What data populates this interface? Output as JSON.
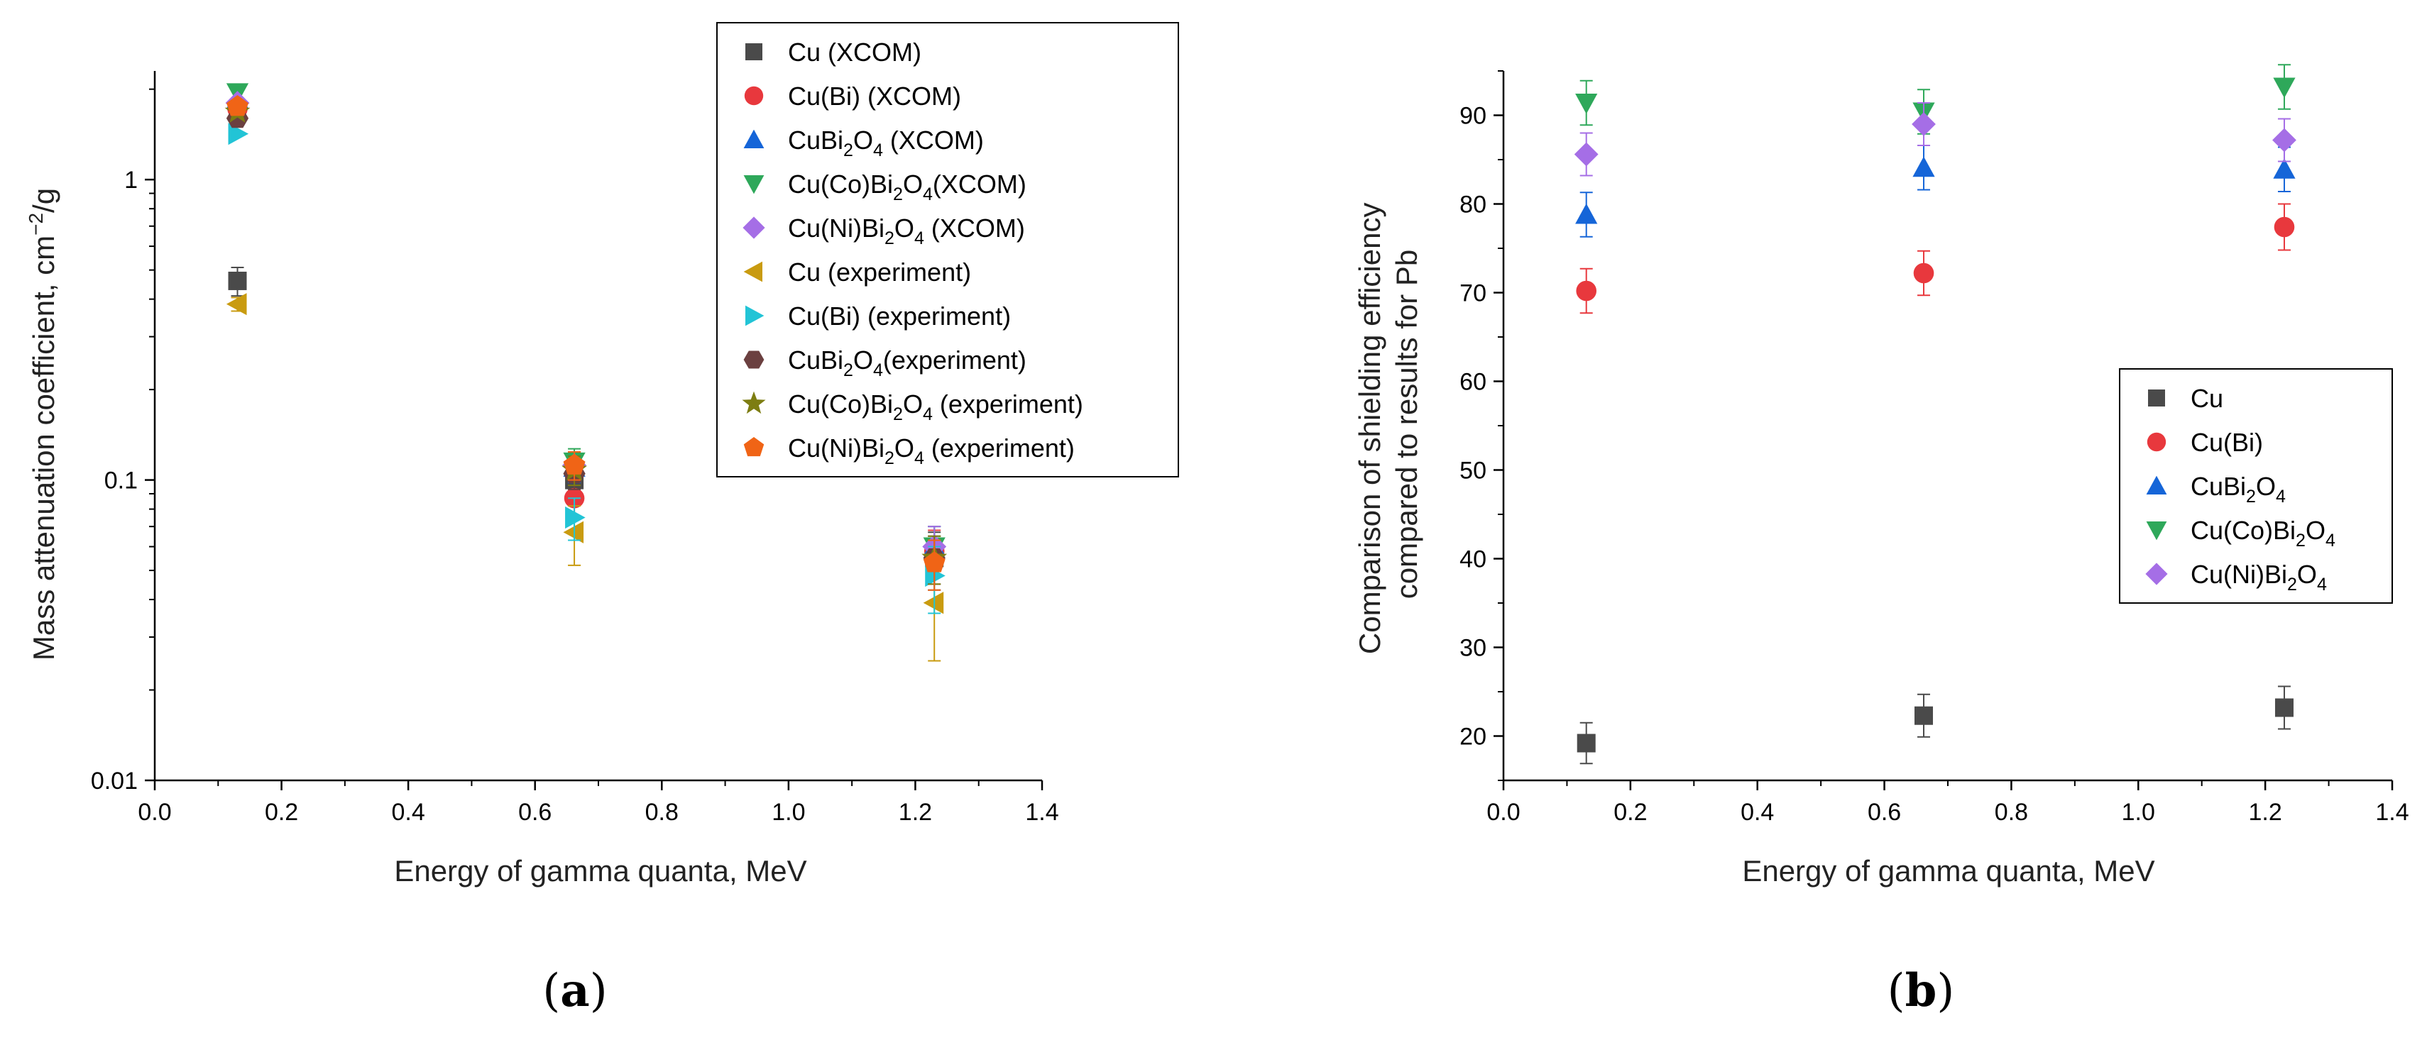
{
  "chart_data": [
    {
      "type": "scatter",
      "panel_label": "a",
      "xlabel": "Energy of gamma quanta, MeV",
      "ylabel": "Mass attenuation coefficient, cm",
      "ylabel_sup": "−2",
      "ylabel_tail": "/g",
      "xscale": "linear",
      "yscale": "log",
      "xlim": [
        0.0,
        1.4
      ],
      "ylim": [
        0.01,
        2.3
      ],
      "xticks": [
        "0.0",
        "0.2",
        "0.4",
        "0.6",
        "0.8",
        "1.0",
        "1.2",
        "1.4"
      ],
      "xtick_values": [
        0.0,
        0.2,
        0.4,
        0.6,
        0.8,
        1.0,
        1.2,
        1.4
      ],
      "yticks": [
        "0.01",
        "0.1",
        "1"
      ],
      "ytick_values": [
        0.01,
        0.1,
        1
      ],
      "grid": false,
      "legend_position": "top-right",
      "series": [
        {
          "name": "Cu (XCOM)",
          "label": [
            [
              "Cu (XCOM)",
              ""
            ]
          ],
          "marker": "square",
          "color": "#4a4a4a",
          "x": [
            0.1305,
            0.662,
            1.23
          ],
          "y": [
            0.46,
            0.1,
            0.055
          ],
          "err": [
            0.05,
            0.015,
            0.012
          ]
        },
        {
          "name": "Cu(Bi) (XCOM)",
          "label": [
            [
              "Cu(Bi) (XCOM)",
              ""
            ]
          ],
          "marker": "circle",
          "color": "#e8383d",
          "x": [
            0.1305,
            0.662,
            1.23
          ],
          "y": [
            1.72,
            0.087,
            0.058
          ],
          "err": [
            0.0,
            0.012,
            0.01
          ]
        },
        {
          "name": "CuBi2O4 (XCOM)",
          "label": [
            [
              "CuBi",
              ""
            ],
            [
              "2",
              "sub"
            ],
            [
              "O",
              ""
            ],
            [
              "4",
              "sub"
            ],
            [
              " (XCOM)",
              ""
            ]
          ],
          "marker": "triangle-up",
          "color": "#1565d8",
          "x": [
            0.1305,
            0.662,
            1.23
          ],
          "y": [
            1.85,
            0.11,
            0.06
          ],
          "err": [
            0.0,
            0.012,
            0.01
          ]
        },
        {
          "name": "Cu(Co)Bi2O4(XCOM)",
          "label": [
            [
              "Cu(Co)Bi",
              ""
            ],
            [
              "2",
              "sub"
            ],
            [
              "O",
              ""
            ],
            [
              "4",
              "sub"
            ],
            [
              "(XCOM)",
              ""
            ]
          ],
          "marker": "triangle-down",
          "color": "#2ea85a",
          "x": [
            0.1305,
            0.662,
            1.23
          ],
          "y": [
            1.95,
            0.115,
            0.06
          ],
          "err": [
            0.0,
            0.012,
            0.01
          ]
        },
        {
          "name": "Cu(Ni)Bi2O4 (XCOM)",
          "label": [
            [
              "Cu(Ni)Bi",
              ""
            ],
            [
              "2",
              "sub"
            ],
            [
              "O",
              ""
            ],
            [
              "4",
              "sub"
            ],
            [
              " (XCOM)",
              ""
            ]
          ],
          "marker": "diamond",
          "color": "#a56ee6",
          "x": [
            0.1305,
            0.662,
            1.23
          ],
          "y": [
            1.8,
            0.112,
            0.06
          ],
          "err": [
            0.0,
            0.012,
            0.01
          ]
        },
        {
          "name": "Cu (experiment)",
          "label": [
            [
              "Cu (experiment)",
              ""
            ]
          ],
          "marker": "triangle-left",
          "color": "#c99b10",
          "x": [
            0.1305,
            0.662,
            1.23
          ],
          "y": [
            0.385,
            0.067,
            0.039
          ],
          "err": [
            0.02,
            0.015,
            0.014
          ]
        },
        {
          "name": "Cu(Bi) (experiment)",
          "label": [
            [
              "Cu(Bi) (experiment)",
              ""
            ]
          ],
          "marker": "triangle-right",
          "color": "#22c4d6",
          "x": [
            0.1305,
            0.662,
            1.23
          ],
          "y": [
            1.42,
            0.075,
            0.048
          ],
          "err": [
            0.0,
            0.012,
            0.012
          ]
        },
        {
          "name": "CuBi2O4(experiment)",
          "label": [
            [
              "CuBi",
              ""
            ],
            [
              "2",
              "sub"
            ],
            [
              "O",
              ""
            ],
            [
              "4",
              "sub"
            ],
            [
              "(experiment)",
              ""
            ]
          ],
          "marker": "hexagon",
          "color": "#6b4040",
          "x": [
            0.1305,
            0.662,
            1.23
          ],
          "y": [
            1.6,
            0.105,
            0.055
          ],
          "err": [
            0.0,
            0.012,
            0.01
          ]
        },
        {
          "name": "Cu(Co)Bi2O4 (experiment)",
          "label": [
            [
              "Cu(Co)Bi",
              ""
            ],
            [
              "2",
              "sub"
            ],
            [
              "O",
              ""
            ],
            [
              "4",
              "sub"
            ],
            [
              " (experiment)",
              ""
            ]
          ],
          "marker": "star",
          "color": "#7d7d12",
          "x": [
            0.1305,
            0.662,
            1.23
          ],
          "y": [
            1.68,
            0.108,
            0.055
          ],
          "err": [
            0.0,
            0.012,
            0.01
          ]
        },
        {
          "name": "Cu(Ni)Bi2O4 (experiment)",
          "label": [
            [
              "Cu(Ni)Bi",
              ""
            ],
            [
              "2",
              "sub"
            ],
            [
              "O",
              ""
            ],
            [
              "4",
              "sub"
            ],
            [
              " (experiment)",
              ""
            ]
          ],
          "marker": "pentagon",
          "color": "#f06416",
          "x": [
            0.1305,
            0.662,
            1.23
          ],
          "y": [
            1.75,
            0.112,
            0.053
          ],
          "err": [
            0.0,
            0.012,
            0.01
          ]
        }
      ]
    },
    {
      "type": "scatter",
      "panel_label": "b",
      "xlabel": "Energy of gamma quanta, MeV",
      "ylabel_lines": [
        "Comparison of shielding efficiency",
        "compared to results for Pb"
      ],
      "xscale": "linear",
      "yscale": "linear",
      "xlim": [
        0.0,
        1.4
      ],
      "ylim": [
        15,
        95
      ],
      "xticks": [
        "0.0",
        "0.2",
        "0.4",
        "0.6",
        "0.8",
        "1.0",
        "1.2",
        "1.4"
      ],
      "xtick_values": [
        0.0,
        0.2,
        0.4,
        0.6,
        0.8,
        1.0,
        1.2,
        1.4
      ],
      "yticks": [
        "20",
        "30",
        "40",
        "50",
        "60",
        "70",
        "80",
        "90"
      ],
      "ytick_values": [
        20,
        30,
        40,
        50,
        60,
        70,
        80,
        90
      ],
      "grid": false,
      "legend_position": "center-right",
      "series": [
        {
          "name": "Cu",
          "label": [
            [
              "Cu",
              ""
            ]
          ],
          "marker": "square",
          "color": "#4a4a4a",
          "x": [
            0.1305,
            0.662,
            1.23
          ],
          "y": [
            19.2,
            22.3,
            23.2
          ],
          "err": [
            2.3,
            2.4,
            2.4
          ]
        },
        {
          "name": "Cu(Bi)",
          "label": [
            [
              "Cu(Bi)",
              ""
            ]
          ],
          "marker": "circle",
          "color": "#e8383d",
          "x": [
            0.1305,
            0.662,
            1.23
          ],
          "y": [
            70.2,
            72.2,
            77.4
          ],
          "err": [
            2.5,
            2.5,
            2.6
          ]
        },
        {
          "name": "CuBi2O4",
          "label": [
            [
              "CuBi",
              ""
            ],
            [
              "2",
              "sub"
            ],
            [
              "O",
              ""
            ],
            [
              "4",
              "sub"
            ]
          ],
          "marker": "triangle-up",
          "color": "#1565d8",
          "x": [
            0.1305,
            0.662,
            1.23
          ],
          "y": [
            78.8,
            84.1,
            83.9
          ],
          "err": [
            2.5,
            2.5,
            2.5
          ]
        },
        {
          "name": "Cu(Co)Bi2O4",
          "label": [
            [
              "Cu(Co)Bi",
              ""
            ],
            [
              "2",
              "sub"
            ],
            [
              "O",
              ""
            ],
            [
              "4",
              "sub"
            ]
          ],
          "marker": "triangle-down",
          "color": "#2ea85a",
          "x": [
            0.1305,
            0.662,
            1.23
          ],
          "y": [
            91.4,
            90.4,
            93.2
          ],
          "err": [
            2.5,
            2.5,
            2.5
          ]
        },
        {
          "name": "Cu(Ni)Bi2O4",
          "label": [
            [
              "Cu(Ni)Bi",
              ""
            ],
            [
              "2",
              "sub"
            ],
            [
              "O",
              ""
            ],
            [
              "4",
              "sub"
            ]
          ],
          "marker": "diamond",
          "color": "#a56ee6",
          "x": [
            0.1305,
            0.662,
            1.23
          ],
          "y": [
            85.6,
            89.0,
            87.2
          ],
          "err": [
            2.4,
            2.4,
            2.4
          ]
        }
      ]
    }
  ]
}
